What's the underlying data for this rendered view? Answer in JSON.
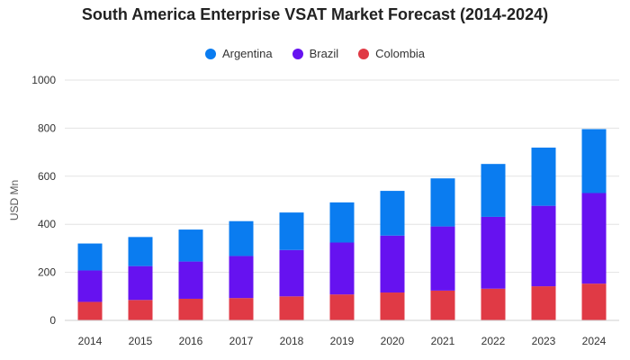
{
  "chart_data": {
    "type": "bar",
    "stacked": true,
    "title": "South America Enterprise VSAT Market Forecast (2014-2024)",
    "xlabel": "",
    "ylabel": "USD Mn",
    "ylim": [
      0,
      1000
    ],
    "yticks": [
      "0",
      "200",
      "400",
      "600",
      "800",
      "1000"
    ],
    "grid": true,
    "legend_position": "top",
    "categories": [
      "2014",
      "2015",
      "2016",
      "2017",
      "2018",
      "2019",
      "2020",
      "2021",
      "2022",
      "2023",
      "2024"
    ],
    "series": [
      {
        "name": "Colombia",
        "color": "#e03a45",
        "values": [
          77,
          85,
          90,
          93,
          100,
          108,
          116,
          124,
          132,
          142,
          153
        ]
      },
      {
        "name": "Brazil",
        "color": "#6612f0",
        "values": [
          131,
          141,
          155,
          175,
          193,
          216,
          237,
          267,
          299,
          335,
          377
        ]
      },
      {
        "name": "Argentina",
        "color": "#0a7cf0",
        "values": [
          112,
          121,
          133,
          145,
          156,
          167,
          186,
          200,
          220,
          242,
          266
        ]
      }
    ]
  },
  "legend": {
    "items": [
      {
        "label": "Argentina",
        "color": "#0a7cf0"
      },
      {
        "label": "Brazil",
        "color": "#6612f0"
      },
      {
        "label": "Colombia",
        "color": "#e03a45"
      }
    ]
  }
}
